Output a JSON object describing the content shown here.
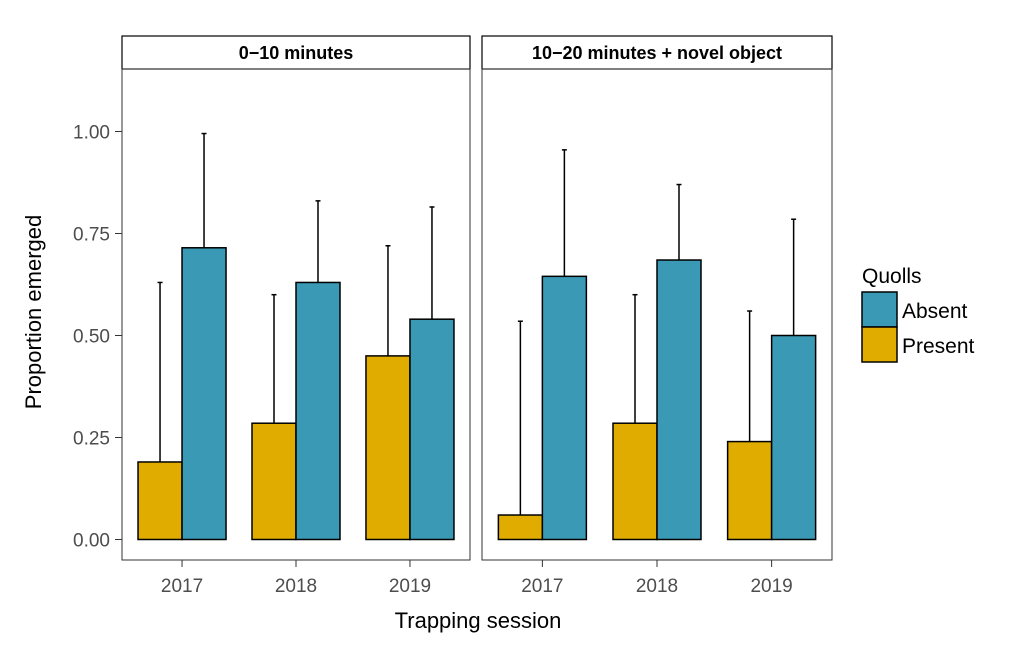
{
  "chart_data": {
    "type": "bar",
    "xlabel": "Trapping session",
    "ylabel": "Proportion emerged",
    "ylim": [
      -0.06,
      1.14
    ],
    "yticks": [
      "0.00",
      "0.25",
      "0.50",
      "0.75",
      "1.00"
    ],
    "ytick_values": [
      0,
      0.25,
      0.5,
      0.75,
      1.0
    ],
    "categories": [
      "2017",
      "2018",
      "2019"
    ],
    "grid": false,
    "legend": {
      "title": "Quolls",
      "position": "right",
      "entries": [
        {
          "name": "Absent",
          "color": "#3a99b4"
        },
        {
          "name": "Present",
          "color": "#e0ac00"
        }
      ]
    },
    "panels": [
      {
        "title": "0−10 minutes",
        "series": [
          {
            "name": "Present",
            "color": "#e0ac00",
            "values": [
              0.19,
              0.285,
              0.45
            ],
            "error_upper": [
              0.63,
              0.6,
              0.72
            ]
          },
          {
            "name": "Absent",
            "color": "#3a99b4",
            "values": [
              0.715,
              0.63,
              0.54
            ],
            "error_upper": [
              0.995,
              0.83,
              0.815
            ]
          }
        ]
      },
      {
        "title": "10−20 minutes + novel object",
        "series": [
          {
            "name": "Present",
            "color": "#e0ac00",
            "values": [
              0.06,
              0.285,
              0.24
            ],
            "error_upper": [
              0.535,
              0.6,
              0.56
            ]
          },
          {
            "name": "Absent",
            "color": "#3a99b4",
            "values": [
              0.645,
              0.685,
              0.5
            ],
            "error_upper": [
              0.955,
              0.87,
              0.785
            ]
          }
        ]
      }
    ]
  }
}
